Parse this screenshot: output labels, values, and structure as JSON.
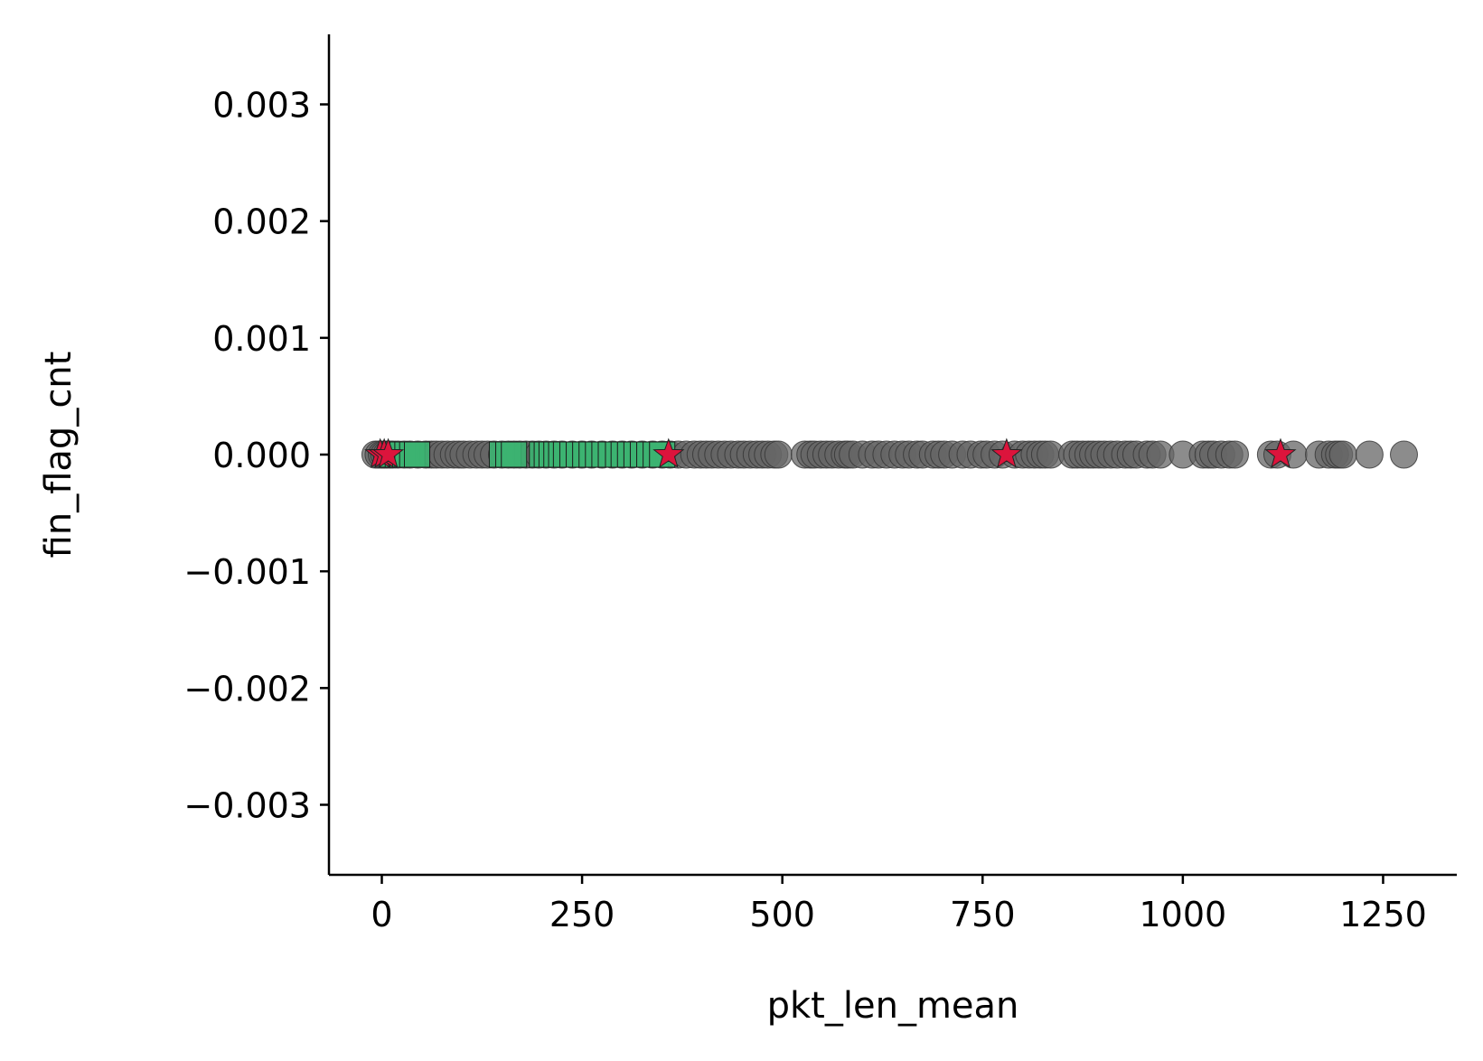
{
  "chart_data": {
    "type": "scatter",
    "title": "",
    "xlabel": "pkt_len_mean",
    "ylabel": "fin_flag_cnt",
    "xlim": [
      -66,
      1342
    ],
    "ylim": [
      -0.0036,
      0.0036
    ],
    "xticks": [
      0,
      250,
      500,
      750,
      1000,
      1250
    ],
    "yticks": [
      -0.003,
      -0.002,
      -0.001,
      0.0,
      0.001,
      0.002,
      0.003
    ],
    "xtick_labels": [
      "0",
      "250",
      "500",
      "750",
      "1000",
      "1250"
    ],
    "ytick_labels": [
      "−0.003",
      "−0.002",
      "−0.001",
      "0.000",
      "0.001",
      "0.002",
      "0.003"
    ],
    "grid": false,
    "legend": "none",
    "series": [
      {
        "marker": "circle",
        "color": "#666666",
        "x": [
          -8,
          -4,
          0,
          3,
          6,
          10,
          14,
          20,
          28,
          35,
          45,
          55,
          62,
          68,
          75,
          82,
          90,
          96,
          102,
          110,
          118,
          125,
          132,
          140,
          150,
          158,
          165,
          172,
          180,
          188,
          196,
          205,
          215,
          225,
          238,
          250,
          262,
          275,
          288,
          300,
          312,
          325,
          338,
          350,
          360,
          370,
          380,
          390,
          398,
          405,
          412,
          420,
          428,
          436,
          445,
          452,
          460,
          468,
          475,
          482,
          490,
          495,
          528,
          535,
          540,
          548,
          555,
          562,
          570,
          578,
          582,
          588,
          600,
          612,
          620,
          630,
          640,
          650,
          658,
          668,
          675,
          688,
          695,
          702,
          712,
          725,
          735,
          748,
          755,
          765,
          775,
          790,
          800,
          808,
          815,
          822,
          828,
          835,
          862,
          868,
          875,
          882,
          888,
          895,
          902,
          910,
          918,
          928,
          935,
          942,
          955,
          962,
          972,
          1000,
          1025,
          1032,
          1038,
          1048,
          1058,
          1065,
          1110,
          1118,
          1138,
          1170,
          1182,
          1190,
          1195,
          1200,
          1233,
          1276
        ],
        "y": [
          0,
          0,
          0,
          0,
          0,
          0,
          0,
          0,
          0,
          0,
          0,
          0,
          0,
          0,
          0,
          0,
          0,
          0,
          0,
          0,
          0,
          0,
          0,
          0,
          0,
          0,
          0,
          0,
          0,
          0,
          0,
          0,
          0,
          0,
          0,
          0,
          0,
          0,
          0,
          0,
          0,
          0,
          0,
          0,
          0,
          0,
          0,
          0,
          0,
          0,
          0,
          0,
          0,
          0,
          0,
          0,
          0,
          0,
          0,
          0,
          0,
          0,
          0,
          0,
          0,
          0,
          0,
          0,
          0,
          0,
          0,
          0,
          0,
          0,
          0,
          0,
          0,
          0,
          0,
          0,
          0,
          0,
          0,
          0,
          0,
          0,
          0,
          0,
          0,
          0,
          0,
          0,
          0,
          0,
          0,
          0,
          0,
          0,
          0,
          0,
          0,
          0,
          0,
          0,
          0,
          0,
          0,
          0,
          0,
          0,
          0,
          0,
          0,
          0,
          0,
          0,
          0,
          0,
          0,
          0,
          0,
          0,
          0,
          0,
          0,
          0,
          0,
          0,
          0,
          0
        ]
      },
      {
        "marker": "square",
        "color": "#3cb371",
        "x": [
          14,
          20,
          26,
          32,
          38,
          44,
          150,
          158,
          165,
          200,
          206,
          212,
          218,
          224,
          230,
          238,
          246,
          254,
          262,
          270,
          278,
          286,
          295,
          302,
          310,
          318,
          326,
          334,
          342,
          350
        ],
        "y": [
          0,
          0,
          0,
          0,
          0,
          0,
          0,
          0,
          0,
          0,
          0,
          0,
          0,
          0,
          0,
          0,
          0,
          0,
          0,
          0,
          0,
          0,
          0,
          0,
          0,
          0,
          0,
          0,
          0,
          0
        ]
      },
      {
        "marker": "star",
        "color": "#dc143c",
        "x": [
          -2,
          3,
          8,
          358,
          780,
          1122
        ],
        "y": [
          0,
          0,
          0,
          0,
          0,
          0
        ]
      }
    ]
  }
}
